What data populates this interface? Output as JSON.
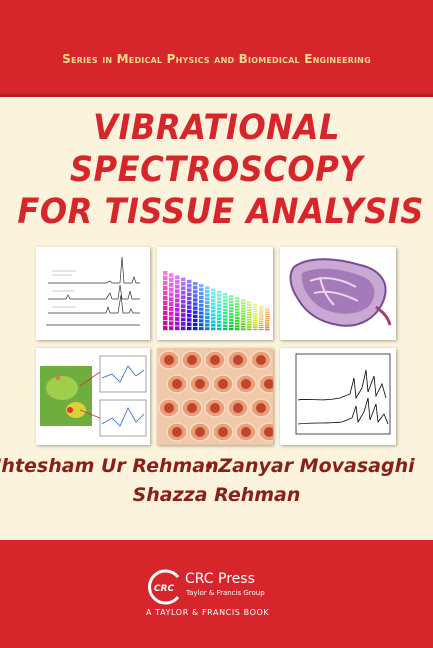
{
  "series": "Series in Medical Physics and Biomedical Engineering",
  "title": [
    "VIBRATIONAL",
    "SPECTROSCOPY",
    "FOR TISSUE ANALYSIS"
  ],
  "authors": [
    "Ihtesham Ur Rehman",
    "Zanyar Movasaghi",
    "Shazza Rehman"
  ],
  "publisher": {
    "logo": "CRC",
    "name": "CRC Press",
    "group": "Taylor & Francis Group",
    "imprint": "A TAYLOR & FRANCIS BOOK"
  }
}
